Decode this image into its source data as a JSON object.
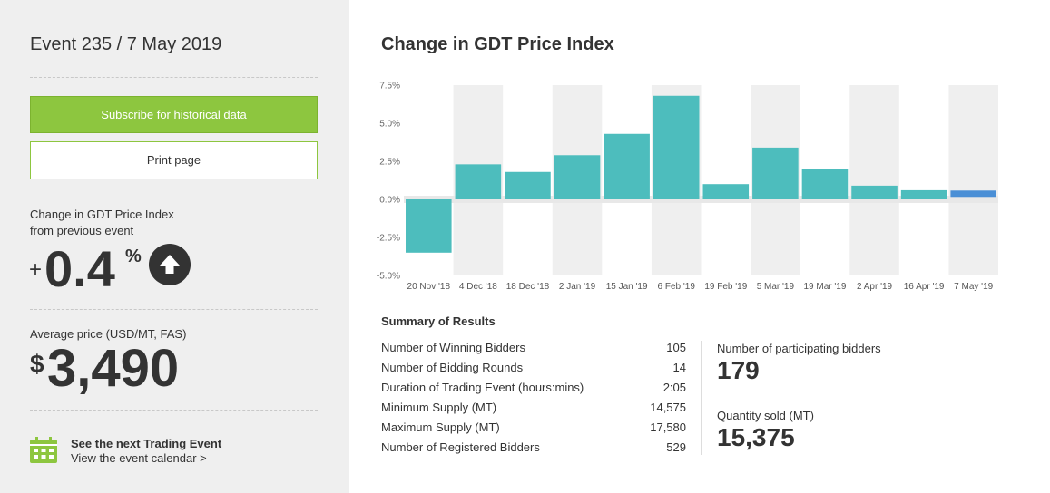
{
  "sidebar": {
    "event_title": "Event 235 / 7 May 2019",
    "subscribe_label": "Subscribe for historical data",
    "print_label": "Print page",
    "change_label_line1": "Change in GDT Price Index",
    "change_label_line2": "from previous event",
    "change_sign": "+",
    "change_value": "0.4",
    "change_unit": "%",
    "change_direction_icon": "arrow-up-icon",
    "avg_label": "Average price (USD/MT, FAS)",
    "avg_currency": "$",
    "avg_value": "3,490",
    "next_event_title": "See the next Trading Event",
    "next_event_link": "View the event calendar >",
    "accent_color": "#8dc63f"
  },
  "chart_title": "Change in GDT Price Index",
  "chart_data": {
    "type": "bar",
    "categories": [
      "20 Nov '18",
      "4 Dec '18",
      "18 Dec '18",
      "2 Jan '19",
      "15 Jan '19",
      "6 Feb '19",
      "19 Feb '19",
      "5 Mar '19",
      "19 Mar '19",
      "2 Apr '19",
      "16 Apr '19",
      "7 May '19"
    ],
    "values": [
      -3.5,
      2.3,
      1.8,
      2.9,
      4.3,
      6.8,
      1.0,
      3.4,
      2.0,
      0.9,
      0.6,
      0.4
    ],
    "ylim": [
      -5.0,
      7.5
    ],
    "yticks": [
      "7.5%",
      "5.0%",
      "2.5%",
      "0.0%",
      "-2.5%",
      "-5.0%"
    ],
    "ytick_values": [
      7.5,
      5.0,
      2.5,
      0.0,
      -2.5,
      -5.0
    ],
    "bar_color": "#4dbdbd",
    "highlight_color": "#4a8fd6",
    "highlight_index": 11,
    "band_color": "#e8e8e8",
    "title": "Change in GDT Price Index",
    "xlabel": "",
    "ylabel": ""
  },
  "summary": {
    "title": "Summary of Results",
    "rows": [
      {
        "label": "Number of Winning Bidders",
        "value": "105"
      },
      {
        "label": "Number of Bidding Rounds",
        "value": "14"
      },
      {
        "label": "Duration of Trading Event (hours:mins)",
        "value": "2:05"
      },
      {
        "label": "Minimum Supply (MT)",
        "value": "14,575"
      },
      {
        "label": "Maximum Supply (MT)",
        "value": "17,580"
      },
      {
        "label": "Number of Registered Bidders",
        "value": "529"
      }
    ],
    "participating_label": "Number of participating bidders",
    "participating_value": "179",
    "quantity_label": "Quantity sold (MT)",
    "quantity_value": "15,375"
  }
}
